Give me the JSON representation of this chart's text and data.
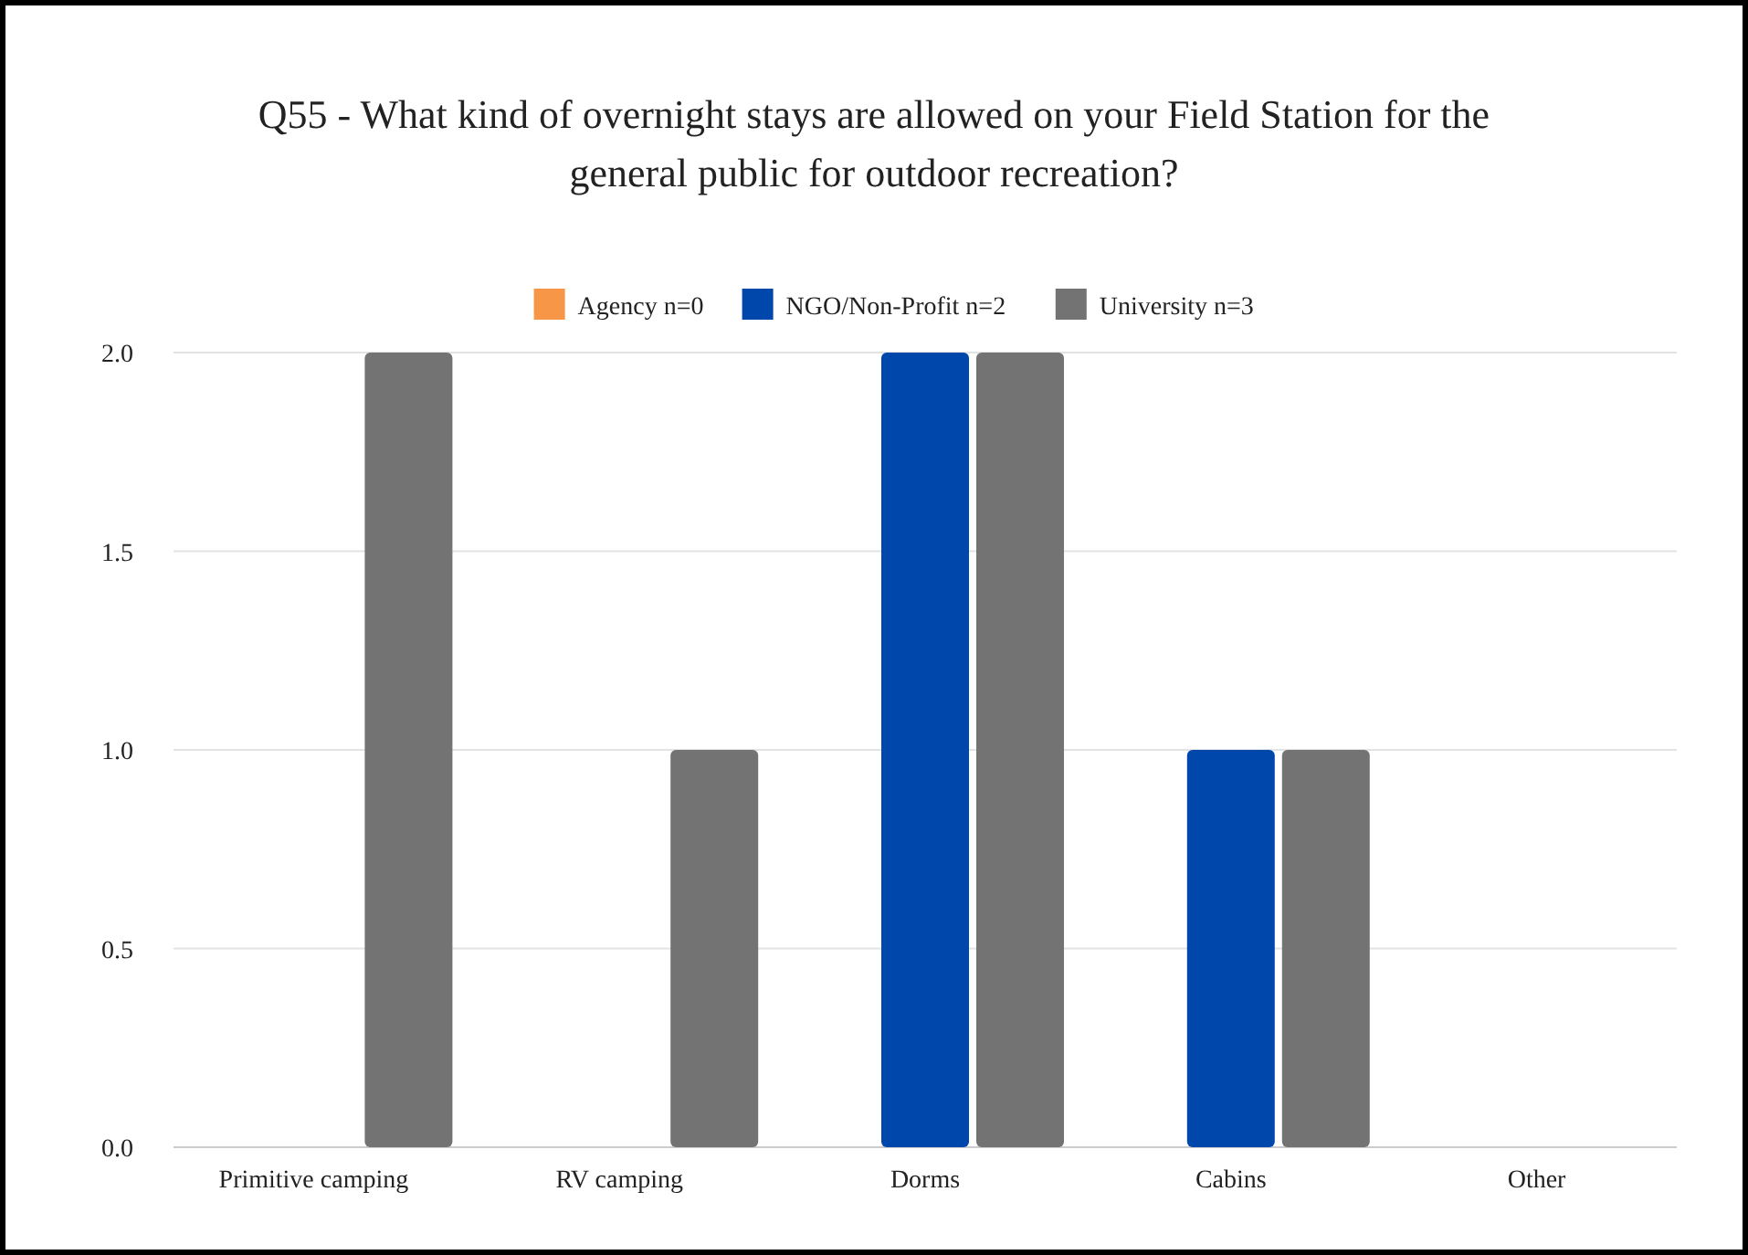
{
  "chart_data": {
    "type": "bar",
    "title": "Q55 - What kind of overnight stays are allowed on your Field Station for the general public for outdoor recreation?",
    "categories": [
      "Primitive camping",
      "RV camping",
      "Dorms",
      "Cabins",
      "Other"
    ],
    "series": [
      {
        "name": "Agency n=0",
        "color": "#f79646",
        "values": [
          0,
          0,
          0,
          0,
          0
        ]
      },
      {
        "name": "NGO/Non-Profit n=2",
        "color": "#0047ab",
        "values": [
          0,
          0,
          2,
          1,
          0
        ]
      },
      {
        "name": "University n=3",
        "color": "#737373",
        "values": [
          2,
          1,
          2,
          1,
          0
        ]
      }
    ],
    "ylim": [
      0,
      2
    ],
    "yticks": [
      {
        "value": 0,
        "label": "0.0"
      },
      {
        "value": 0.5,
        "label": "0.5"
      },
      {
        "value": 1,
        "label": "1.0"
      },
      {
        "value": 1.5,
        "label": "1.5"
      },
      {
        "value": 2,
        "label": "2.0"
      }
    ],
    "grid": "y",
    "legend": "top"
  }
}
